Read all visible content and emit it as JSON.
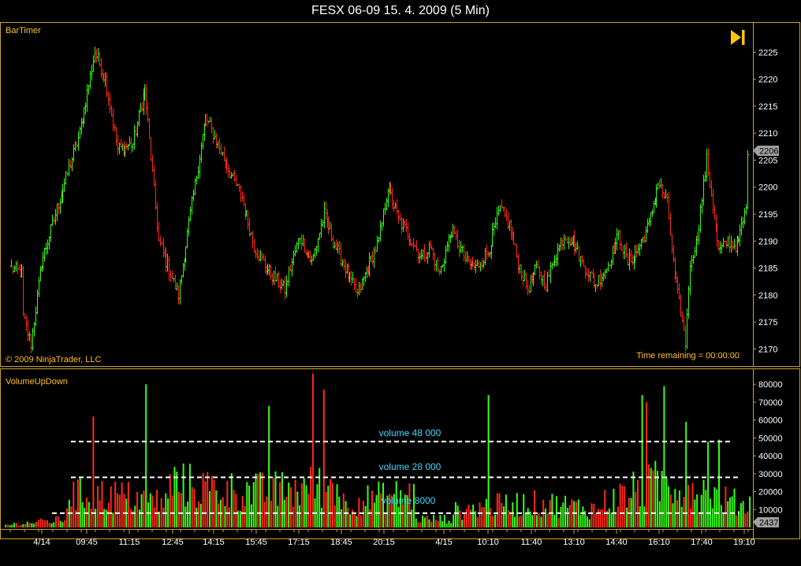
{
  "window": {
    "title": "FESX 06-09  15. 4. 2009 (5 Min)"
  },
  "price_panel": {
    "indicator_label": "BarTimer",
    "copyright": "© 2009 NinjaTrader, LLC",
    "time_remaining": "Time remaining = 00:00:00",
    "current_price_label": "2206",
    "play_icon": "skip-to-end-icon"
  },
  "volume_panel": {
    "indicator_label": "VolumeUpDown",
    "current_volume_label": "2437",
    "annotations": [
      "volume 48 000",
      "volume 28 000",
      "volume 8000"
    ]
  },
  "colors": {
    "background": "#000000",
    "frame": "#c8a232",
    "up": "#39ff14",
    "down": "#ff2a1a",
    "text_yellow": "#ffc020",
    "annotation": "#40d8ff"
  },
  "chart_data": [
    {
      "type": "ohlc",
      "title": "FESX 06-09  15. 4. 2009 (5 Min)",
      "ylim": [
        2167,
        2230
      ],
      "yticks": [
        2170,
        2175,
        2180,
        2185,
        2190,
        2195,
        2200,
        2205,
        2210,
        2215,
        2220,
        2225
      ],
      "x_tick_labels": [
        "4/14",
        "09:45",
        "11:15",
        "12:45",
        "14:15",
        "15:45",
        "17:15",
        "18:45",
        "20:15",
        "4/15",
        "10:10",
        "11:40",
        "13:10",
        "14:40",
        "16:10",
        "17:40",
        "19:10"
      ],
      "close_path": [
        [
          0,
          2185
        ],
        [
          7,
          2184
        ],
        [
          8,
          2176
        ],
        [
          13,
          2171
        ],
        [
          20,
          2186
        ],
        [
          30,
          2196
        ],
        [
          45,
          2210
        ],
        [
          55,
          2225
        ],
        [
          62,
          2220
        ],
        [
          70,
          2207
        ],
        [
          80,
          2208
        ],
        [
          88,
          2218
        ],
        [
          97,
          2190
        ],
        [
          105,
          2184
        ],
        [
          110,
          2180
        ],
        [
          118,
          2195
        ],
        [
          128,
          2213
        ],
        [
          136,
          2208
        ],
        [
          145,
          2202
        ],
        [
          152,
          2198
        ],
        [
          160,
          2189
        ],
        [
          168,
          2185
        ],
        [
          180,
          2181
        ],
        [
          190,
          2191
        ],
        [
          198,
          2186
        ],
        [
          206,
          2195
        ],
        [
          212,
          2190
        ],
        [
          220,
          2185
        ],
        [
          228,
          2180
        ],
        [
          236,
          2186
        ],
        [
          242,
          2190
        ],
        [
          248,
          2200
        ],
        [
          255,
          2194
        ],
        [
          262,
          2191
        ],
        [
          270,
          2187
        ],
        [
          276,
          2189
        ],
        [
          282,
          2184
        ],
        [
          290,
          2192
        ],
        [
          300,
          2186
        ],
        [
          306,
          2185
        ],
        [
          314,
          2188
        ],
        [
          322,
          2196
        ],
        [
          328,
          2193
        ],
        [
          334,
          2186
        ],
        [
          340,
          2181
        ],
        [
          346,
          2185
        ],
        [
          352,
          2182
        ],
        [
          358,
          2187
        ],
        [
          364,
          2191
        ],
        [
          370,
          2190
        ],
        [
          376,
          2186
        ],
        [
          385,
          2182
        ],
        [
          392,
          2185
        ],
        [
          400,
          2191
        ],
        [
          406,
          2186
        ],
        [
          412,
          2188
        ],
        [
          420,
          2193
        ],
        [
          426,
          2201
        ],
        [
          432,
          2197
        ],
        [
          437,
          2183
        ],
        [
          441,
          2177
        ],
        [
          444,
          2171
        ],
        [
          446,
          2182
        ],
        [
          448,
          2187
        ],
        [
          452,
          2191
        ],
        [
          458,
          2205
        ],
        [
          466,
          2188
        ],
        [
          472,
          2190
        ],
        [
          478,
          2189
        ],
        [
          484,
          2196
        ]
      ],
      "close_last": 2206
    },
    {
      "type": "bar",
      "title": "",
      "ylim": [
        0,
        88000
      ],
      "yticks": [
        0,
        10000,
        20000,
        30000,
        40000,
        50000,
        60000,
        70000,
        80000
      ],
      "series": [
        {
          "name": "",
          "color": "#39ff14"
        },
        {
          "name": "",
          "color": "#ff2a1a"
        }
      ],
      "levels": [
        48000,
        28000,
        8000
      ],
      "current_value": 2437
    }
  ]
}
